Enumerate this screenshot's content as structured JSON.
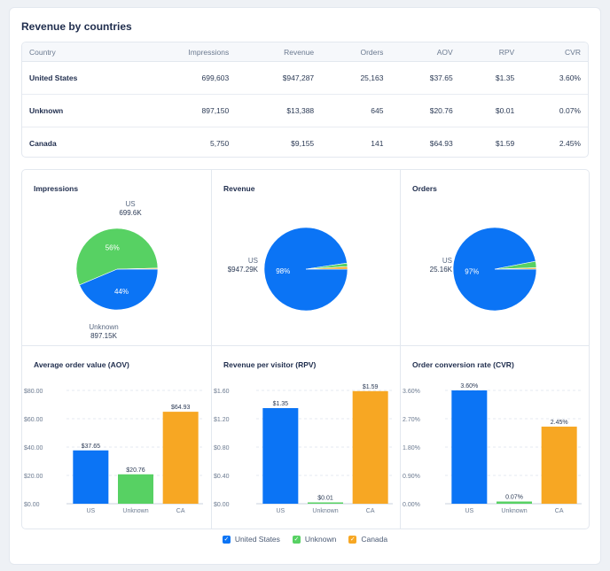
{
  "page": {
    "title": "Revenue by countries"
  },
  "table": {
    "headers": [
      "Country",
      "Impressions",
      "Revenue",
      "Orders",
      "AOV",
      "RPV",
      "CVR"
    ],
    "rows": [
      [
        "United States",
        "699,603",
        "$947,287",
        "25,163",
        "$37.65",
        "$1.35",
        "3.60%"
      ],
      [
        "Unknown",
        "897,150",
        "$13,388",
        "645",
        "$20.76",
        "$0.01",
        "0.07%"
      ],
      [
        "Canada",
        "5,750",
        "$9,155",
        "141",
        "$64.93",
        "$1.59",
        "2.45%"
      ]
    ]
  },
  "colors": {
    "US": "#0b74f5",
    "Unknown": "#57d163",
    "CA": "#f7a723"
  },
  "legend": [
    {
      "label": "United States",
      "color": "#0b74f5"
    },
    {
      "label": "Unknown",
      "color": "#57d163"
    },
    {
      "label": "Canada",
      "color": "#f7a723"
    }
  ],
  "chart_data": [
    {
      "type": "pie",
      "title": "Impressions",
      "slices": [
        {
          "category": "US",
          "value": 699603,
          "percent_label": "44%",
          "outer_label": "US",
          "outer_value": "699.6K"
        },
        {
          "category": "Unknown",
          "value": 897150,
          "percent_label": "56%",
          "outer_label": "Unknown",
          "outer_value": "897.15K"
        },
        {
          "category": "CA",
          "value": 5750
        }
      ]
    },
    {
      "type": "pie",
      "title": "Revenue",
      "slices": [
        {
          "category": "US",
          "value": 947287,
          "percent_label": "98%",
          "outer_label": "US",
          "outer_value": "$947.29K"
        },
        {
          "category": "Unknown",
          "value": 13388
        },
        {
          "category": "CA",
          "value": 9155
        }
      ]
    },
    {
      "type": "pie",
      "title": "Orders",
      "slices": [
        {
          "category": "US",
          "value": 25163,
          "percent_label": "97%",
          "outer_label": "US",
          "outer_value": "25.16K"
        },
        {
          "category": "Unknown",
          "value": 645
        },
        {
          "category": "CA",
          "value": 141
        }
      ]
    },
    {
      "type": "bar",
      "title": "Average order value (AOV)",
      "categories": [
        "US",
        "Unknown",
        "CA"
      ],
      "values": [
        37.65,
        20.76,
        64.93
      ],
      "labels": [
        "$37.65",
        "$20.76",
        "$64.93"
      ],
      "yticks": [
        "$0.00",
        "$20.00",
        "$40.00",
        "$60.00",
        "$80.00"
      ],
      "ylim": [
        0,
        80
      ]
    },
    {
      "type": "bar",
      "title": "Revenue per visitor (RPV)",
      "categories": [
        "US",
        "Unknown",
        "CA"
      ],
      "values": [
        1.35,
        0.01,
        1.59
      ],
      "labels": [
        "$1.35",
        "$0.01",
        "$1.59"
      ],
      "yticks": [
        "$0.00",
        "$0.40",
        "$0.80",
        "$1.20",
        "$1.60"
      ],
      "ylim": [
        0,
        1.6
      ]
    },
    {
      "type": "bar",
      "title": "Order conversion rate (CVR)",
      "categories": [
        "US",
        "Unknown",
        "CA"
      ],
      "values": [
        3.6,
        0.07,
        2.45
      ],
      "labels": [
        "3.60%",
        "0.07%",
        "2.45%"
      ],
      "yticks": [
        "0.00%",
        "0.90%",
        "1.80%",
        "2.70%",
        "3.60%"
      ],
      "ylim": [
        0,
        3.6
      ]
    }
  ]
}
